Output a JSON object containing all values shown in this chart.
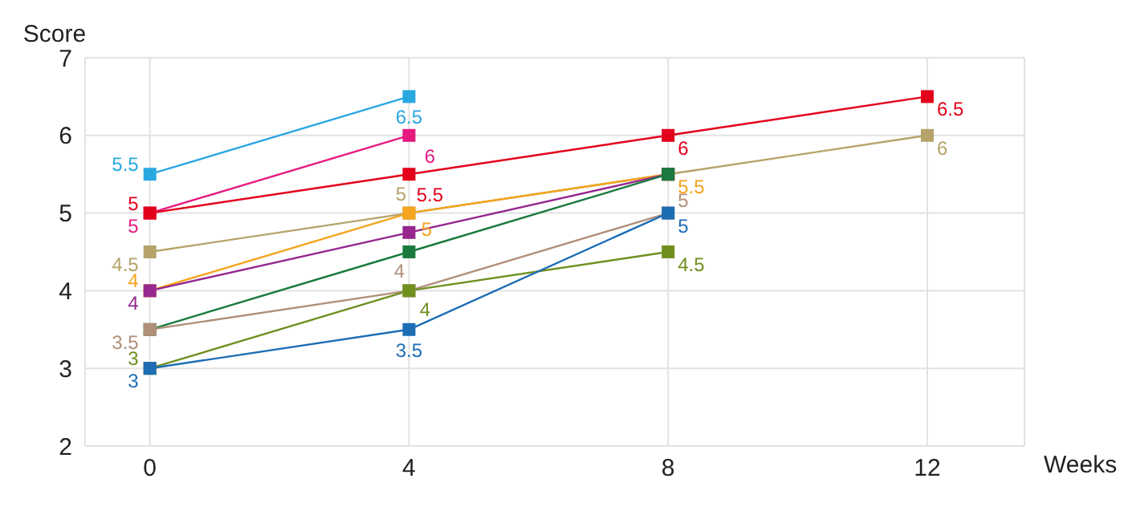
{
  "chart_data": {
    "type": "line",
    "xlabel": "Weeks",
    "ylabel": "Score",
    "x": [
      0,
      4,
      8,
      12
    ],
    "xlim": [
      -1,
      13.5
    ],
    "xticks": [
      0,
      4,
      8,
      12
    ],
    "ylim": [
      2,
      7
    ],
    "yticks": [
      2,
      3,
      4,
      5,
      6,
      7
    ],
    "grid": true,
    "legend": false,
    "marker": "square",
    "line_style": "solid",
    "series": [
      {
        "color": "#29a8e0",
        "values": [
          5.5,
          6.5,
          null,
          null
        ],
        "value_labels": [
          "5.5",
          "6.5",
          null,
          null
        ]
      },
      {
        "color": "#e5197f",
        "values": [
          5,
          6,
          null,
          null
        ],
        "value_labels": [
          "5",
          "6",
          null,
          null
        ]
      },
      {
        "color": "#e3001b",
        "values": [
          5,
          5.5,
          6,
          6.5
        ],
        "value_labels": [
          "5",
          "5.5",
          "6",
          "6.5"
        ]
      },
      {
        "color": "#b5a36a",
        "values": [
          4.5,
          5,
          5.5,
          6
        ],
        "value_labels": [
          "4.5",
          "5",
          null,
          "6"
        ]
      },
      {
        "color": "#f4a41d",
        "values": [
          4,
          5,
          5.5,
          null
        ],
        "value_labels": [
          "4",
          "5",
          "5.5",
          null
        ]
      },
      {
        "color": "#95278e",
        "values": [
          4,
          4.75,
          5.5,
          null
        ],
        "value_labels": [
          "4",
          null,
          null,
          null
        ]
      },
      {
        "color": "#1a7a3e",
        "values": [
          3.5,
          4.5,
          5.5,
          null
        ],
        "value_labels": [
          null,
          null,
          null,
          null
        ]
      },
      {
        "color": "#b08f7a",
        "values": [
          3.5,
          4,
          5,
          null
        ],
        "value_labels": [
          "3.5",
          "4",
          "5",
          null
        ]
      },
      {
        "color": "#6f8f1f",
        "values": [
          3,
          4,
          4.5,
          null
        ],
        "value_labels": [
          "3",
          "4",
          "4.5",
          null
        ]
      },
      {
        "color": "#1d6db5",
        "values": [
          3,
          3.5,
          5,
          null
        ],
        "value_labels": [
          "3",
          "3.5",
          "5",
          null
        ]
      }
    ]
  }
}
